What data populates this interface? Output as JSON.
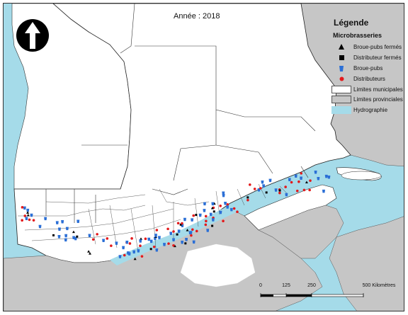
{
  "title": "Année : 2018",
  "colors": {
    "water": "#a5dbe9",
    "land_province": "#c6c6c6",
    "land_quebec": "#ffffff",
    "boundary": "#222222",
    "brewpub": "#2b6fd6",
    "distributor": "#e31a1c",
    "closed": "#000000"
  },
  "north_arrow": {
    "icon": "north-arrow-icon"
  },
  "legend": {
    "title": "Légende",
    "subtitle": "Microbrasseries",
    "items": [
      {
        "label": "Broue-pubs fermés",
        "symbol": "triangle"
      },
      {
        "label": "Distributeur fermés",
        "symbol": "square"
      },
      {
        "label": "Broue-pubs",
        "symbol": "beer-glass"
      },
      {
        "label": "Distributeurs",
        "symbol": "circle"
      },
      {
        "label": "Limites municipales",
        "symbol": "white-box"
      },
      {
        "label": "Limites provinciales",
        "symbol": "grey-box"
      },
      {
        "label": "Hydrographie",
        "symbol": "water-box"
      }
    ]
  },
  "scalebar": {
    "ticks": [
      "0",
      "125",
      "250",
      "500 Kilomètres"
    ],
    "values": [
      0,
      125,
      250,
      500
    ]
  }
}
